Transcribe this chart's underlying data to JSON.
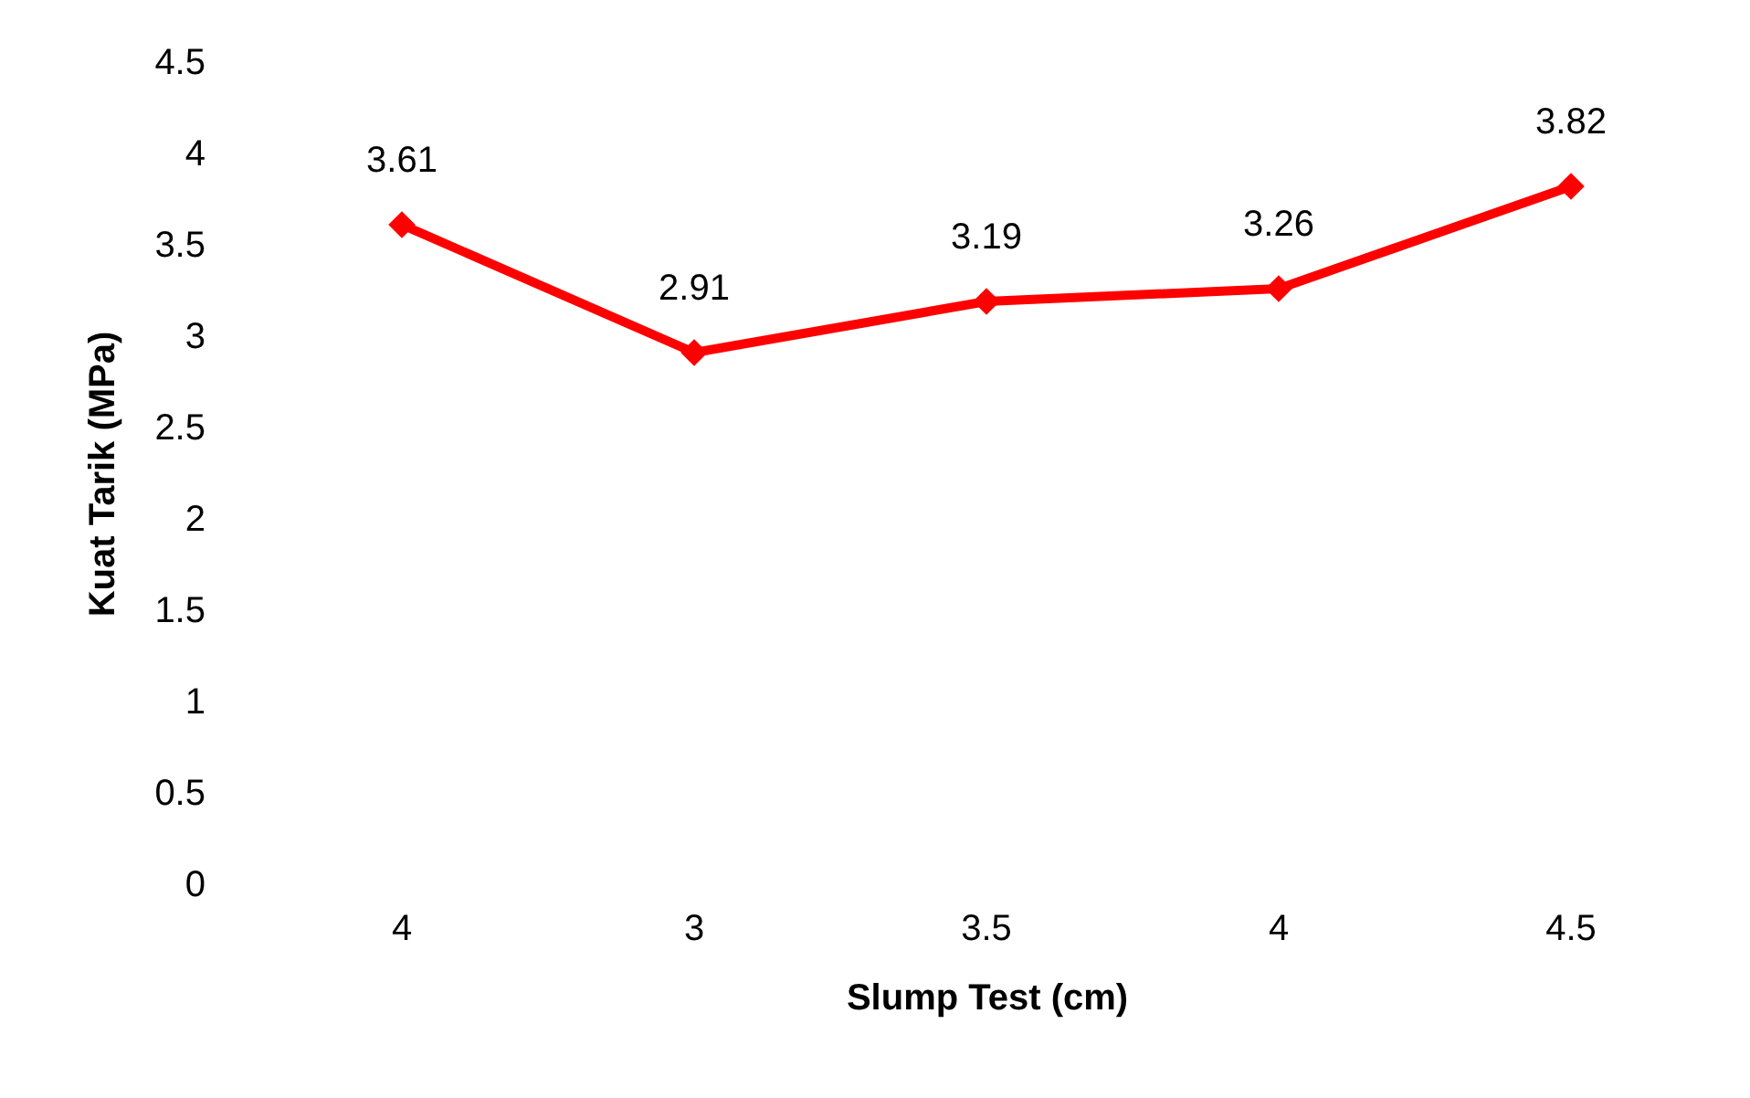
{
  "chart_data": {
    "type": "line",
    "xlabel": "Slump Test (cm)",
    "ylabel": "Kuat Tarik (MPa)",
    "categories": [
      "4",
      "3",
      "3.5",
      "4",
      "4.5"
    ],
    "series": [
      {
        "color": "#ff0000",
        "values": [
          3.61,
          2.91,
          3.19,
          3.26,
          3.82
        ]
      }
    ],
    "ylim": [
      0,
      4.5
    ],
    "yticks": [
      0,
      0.5,
      1,
      1.5,
      2,
      2.5,
      3,
      3.5,
      4,
      4.5
    ],
    "grid": false,
    "marker": "diamond",
    "line_style": "solid",
    "data_labels": true
  }
}
